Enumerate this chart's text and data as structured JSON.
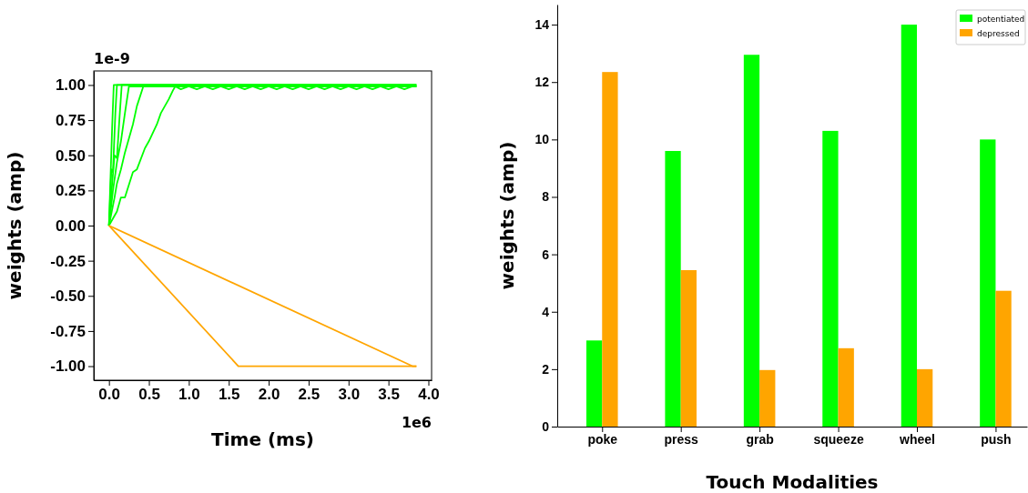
{
  "chart_data": [
    {
      "type": "line",
      "xlabel": "Time (ms)",
      "ylabel": "weights (amp)",
      "annotations": [
        "1e-9",
        "1e6"
      ],
      "xlim": [
        -0.19,
        4.04
      ],
      "ylim": [
        -1.1,
        1.1
      ],
      "xticks": [
        {
          "value": 0,
          "label": "0.0"
        },
        {
          "value": 0.5,
          "label": "0.5"
        },
        {
          "value": 1,
          "label": "1.0"
        },
        {
          "value": 1.5,
          "label": "1.5"
        },
        {
          "value": 2,
          "label": "2.0"
        },
        {
          "value": 2.5,
          "label": "2.5"
        },
        {
          "value": 3,
          "label": "3.0"
        },
        {
          "value": 3.5,
          "label": "3.5"
        },
        {
          "value": 4,
          "label": "4.0"
        }
      ],
      "yticks": [
        {
          "value": -1,
          "label": "-1.00"
        },
        {
          "value": -0.75,
          "label": "-0.75"
        },
        {
          "value": -0.5,
          "label": "-0.50"
        },
        {
          "value": -0.25,
          "label": "-0.25"
        },
        {
          "value": 0,
          "label": "0.00"
        },
        {
          "value": 0.25,
          "label": "0.25"
        },
        {
          "value": 0.5,
          "label": "0.50"
        },
        {
          "value": 0.75,
          "label": "0.75"
        },
        {
          "value": 1,
          "label": "1.00"
        }
      ],
      "marker": "none",
      "line_style": "solid",
      "series": [
        {
          "color": "#00ff00",
          "x": [
            0,
            0.02,
            0.04,
            0.06,
            3.85
          ],
          "values": [
            0,
            0.35,
            0.7,
            1.0,
            1.0
          ]
        },
        {
          "color": "#00ff00",
          "x": [
            0,
            0.03,
            0.05,
            0.08,
            0.1,
            3.85
          ],
          "values": [
            0,
            0.4,
            0.38,
            0.8,
            1.0,
            1.0
          ]
        },
        {
          "color": "#00ff00",
          "x": [
            0,
            0.04,
            0.07,
            0.1,
            0.13,
            0.16,
            3.85
          ],
          "values": [
            0,
            0.3,
            0.5,
            0.48,
            0.75,
            1.0,
            1.0
          ]
        },
        {
          "color": "#00ff00",
          "x": [
            0,
            0.05,
            0.1,
            0.15,
            0.2,
            0.25,
            3.85
          ],
          "values": [
            0,
            0.25,
            0.45,
            0.6,
            0.8,
            0.99,
            0.99
          ]
        },
        {
          "color": "#00ff00",
          "x": [
            0,
            0.07,
            0.1,
            0.15,
            0.2,
            0.25,
            0.3,
            0.35,
            0.43,
            3.85
          ],
          "values": [
            0,
            0.2,
            0.3,
            0.4,
            0.52,
            0.62,
            0.72,
            0.85,
            0.99,
            0.99
          ]
        },
        {
          "color": "#00ff00",
          "x": [
            0,
            0.1,
            0.15,
            0.2,
            0.3,
            0.35,
            0.45,
            0.5,
            0.6,
            0.65,
            0.75,
            0.8,
            0.83,
            0.9,
            1.0,
            1.1,
            1.2,
            1.3,
            1.4,
            1.5,
            1.6,
            1.7,
            1.8,
            1.9,
            2.0,
            2.1,
            2.2,
            2.3,
            2.4,
            2.5,
            2.6,
            2.7,
            2.8,
            2.9,
            3.0,
            3.1,
            3.2,
            3.3,
            3.4,
            3.5,
            3.6,
            3.7,
            3.8,
            3.85
          ],
          "values": [
            0,
            0.1,
            0.2,
            0.2,
            0.38,
            0.4,
            0.55,
            0.6,
            0.72,
            0.8,
            0.9,
            0.96,
            0.99,
            0.97,
            0.99,
            0.97,
            0.99,
            0.97,
            0.99,
            0.97,
            0.99,
            0.97,
            0.99,
            0.97,
            0.99,
            0.97,
            0.99,
            0.97,
            0.99,
            0.97,
            0.99,
            0.97,
            0.99,
            0.97,
            0.99,
            0.97,
            0.99,
            0.97,
            0.99,
            0.97,
            0.99,
            0.97,
            0.99,
            0.99
          ]
        },
        {
          "color": "#ffa500",
          "x": [
            0,
            1.62,
            3.85
          ],
          "values": [
            0,
            -1.0,
            -1.0
          ]
        },
        {
          "color": "#ffa500",
          "x": [
            0,
            3.8,
            3.85
          ],
          "values": [
            0,
            -1.0,
            -1.0
          ]
        }
      ]
    },
    {
      "type": "bar",
      "xlabel": "Touch Modalities",
      "ylabel": "weights (amp)",
      "categories": [
        "poke",
        "press",
        "grab",
        "squeeze",
        "wheel",
        "push"
      ],
      "ylim": [
        0,
        14.7
      ],
      "yticks": [
        0,
        2,
        4,
        6,
        8,
        10,
        12,
        14
      ],
      "legend": "top right",
      "series": [
        {
          "name": "potentiated",
          "color": "#00ff00",
          "values": [
            3.0,
            9.6,
            12.95,
            10.3,
            14.0,
            10.0
          ]
        },
        {
          "name": "depressed",
          "color": "#ffa500",
          "values": [
            12.35,
            5.45,
            1.97,
            2.73,
            2.0,
            4.73
          ]
        }
      ]
    }
  ]
}
